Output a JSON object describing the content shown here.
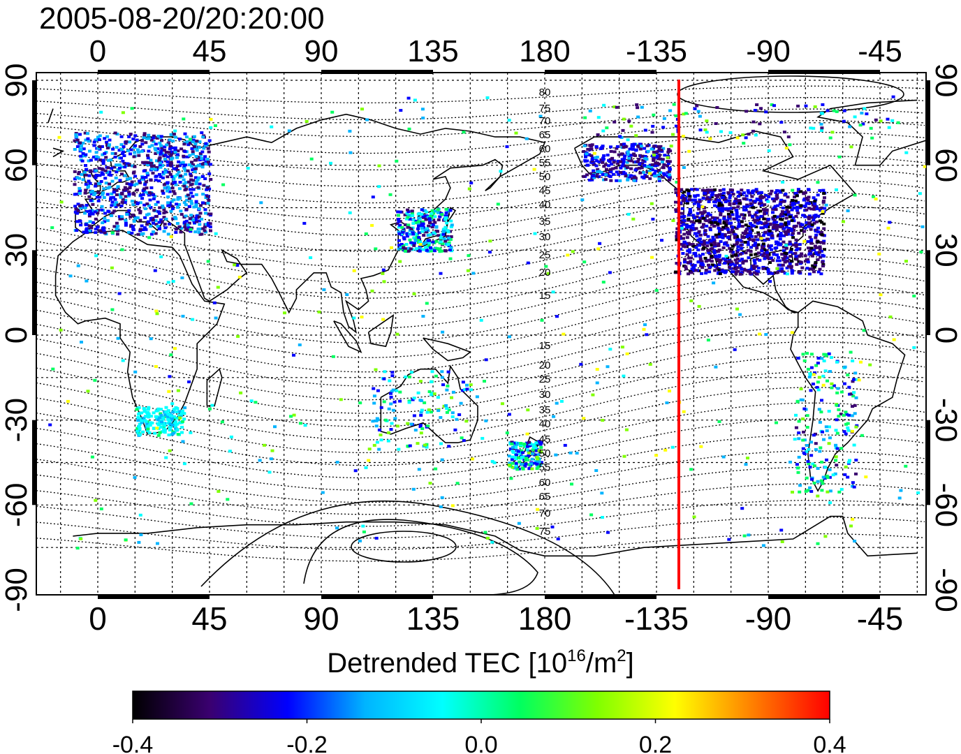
{
  "title": "2005-08-20/20:20:00",
  "colorbar": {
    "label": "Detrended TEC  [10",
    "label_exp": "16",
    "label_unit": "/m",
    "label_unit_exp": "2",
    "label_close": "]",
    "ticks": [
      "-0.4",
      "-0.2",
      "0.0",
      "0.2",
      "0.4"
    ],
    "range": [
      -0.4,
      0.4
    ],
    "colors": [
      "#000000",
      "#3a0070",
      "#0000ff",
      "#00b4ff",
      "#00ffff",
      "#00ff60",
      "#80ff00",
      "#ffff00",
      "#ff8000",
      "#ff0000"
    ]
  },
  "map": {
    "lon_ticks": [
      "0",
      "45",
      "90",
      "135",
      "180",
      "-135",
      "-90",
      "-45"
    ],
    "lat_ticks": [
      "90",
      "60",
      "30",
      "0",
      "-30",
      "-60",
      "-90"
    ],
    "contour_labels": [
      "80",
      "75",
      "70",
      "65",
      "60",
      "55",
      "50",
      "45",
      "40",
      "35",
      "30",
      "25",
      "20",
      "15",
      "15",
      "20",
      "25",
      "30",
      "35",
      "40",
      "45",
      "50",
      "55",
      "60",
      "65",
      "70",
      "75"
    ],
    "marker_longitude": -130,
    "marker_color": "#ff0000"
  }
}
